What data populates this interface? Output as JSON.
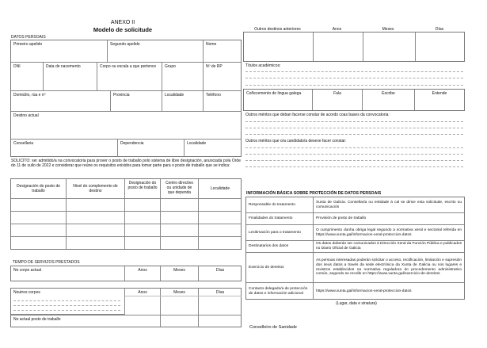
{
  "header": {
    "annex": "ANEXO II",
    "title": "Modelo de solicitude",
    "section": "DATOS PERSOAIS"
  },
  "personal": {
    "primeiro_apelido": "Primeiro apelido",
    "segundo_apelido": "Segundo apelido",
    "nome": "Nome",
    "dni": "DNI",
    "data_nacemento": "Data de nacemento",
    "corpo": "Corpo ou escala a que pertence",
    "grupo": "Grupo",
    "nrp": "Nº de RP",
    "domicilio": "Domicilio, rúa e nº",
    "provincia": "Provincia",
    "localidade": "Localidade",
    "telefono": "Teléfono",
    "destino": "Destino actual",
    "consellaria": "Consellaria",
    "dependencia": "Dependencia",
    "localidade2": "Localidade"
  },
  "solicito": "SOLICITO: ser admitido/a na convocatoria para prover o posto de traballo polo sistema de libre designación, anunciada pola Orde do 11 de xullo de 2022 e considerar que reúne os requisitos exixidos para tomar parte para o posto de traballo que se indica:",
  "posts": {
    "headers": [
      "Designación do posto de traballo",
      "Nivel do complemento de destino",
      "Designación do posto de traballo",
      "Centro directivo ou unidade de que dependa",
      "Localidade"
    ]
  },
  "service": {
    "title": "TEMPO DE SERVIZOS PRESTADOS",
    "current_body": "No corpo actual",
    "other_bodies": "Noutros corpos",
    "current_post": "No actual posto de traballo",
    "anos": "Anos",
    "meses": "Meses",
    "dias": "Días"
  },
  "right": {
    "outros_destinos": "Outros destinos anteriores",
    "anos": "Anos",
    "meses": "Meses",
    "dias": "Días",
    "titulos": "Títulos académicos:",
    "lingua": "Coñecemento de lingua galega",
    "fala": "Fala",
    "escribe": "Escribe",
    "entende": "Entende",
    "meritos_bases": "Outros méritos que deban facerse constar de acordo coas bases da convocatoria:",
    "meritos_candidato": "Outros méritos que o/a candidato/a desexe facer constar:"
  },
  "data_protection": {
    "title": "INFORMACIÓN BÁSICA SOBRE PROTECCIÓN DE DATOS PERSOAIS",
    "rows": [
      {
        "k": "Responsable do tratamento",
        "v": "Xunta de Galicia. Consellaría ou entidade á cal se dirixe esta solicitude, escrito ou comunicación"
      },
      {
        "k": "Finalidades do tratamento",
        "v": "Provisión de posto de traballo"
      },
      {
        "k": "Lexitimación para o tratamento",
        "v": "O cumprimento dunha obriga legal segundo a normativa xeral e sectorial referida en https://www.xunta.gal/informacion-xeral-proteccion-datos"
      },
      {
        "k": "Destinatarios dos datos",
        "v": "Os datos deberán ser comunicados á Dirección Xeral da Función Pública e publicados no Diario Oficial de Galicia"
      },
      {
        "k": "Exercicio de dereitos",
        "v": "As persoas interesadas poderán solicitar o acceso, rectificación, limitación e supresión dos seus datos a través da sede electrónica da Xunta de Galicia ou nos lugares e rexistros establecidos na normativa reguladora do procedemento administrativo común, segundo se recolle en https://www.xunta.gal/exercicio-de-dereitos"
      },
      {
        "k": "Contacto delegado/a de protección de datos e información adicional",
        "v": "https://www.xunta.gal/informacion-xeral-proteccion-datos"
      }
    ]
  },
  "signature": "(Lugar, data e sinatura)",
  "addressee": "Conselleiro de Sanidade"
}
